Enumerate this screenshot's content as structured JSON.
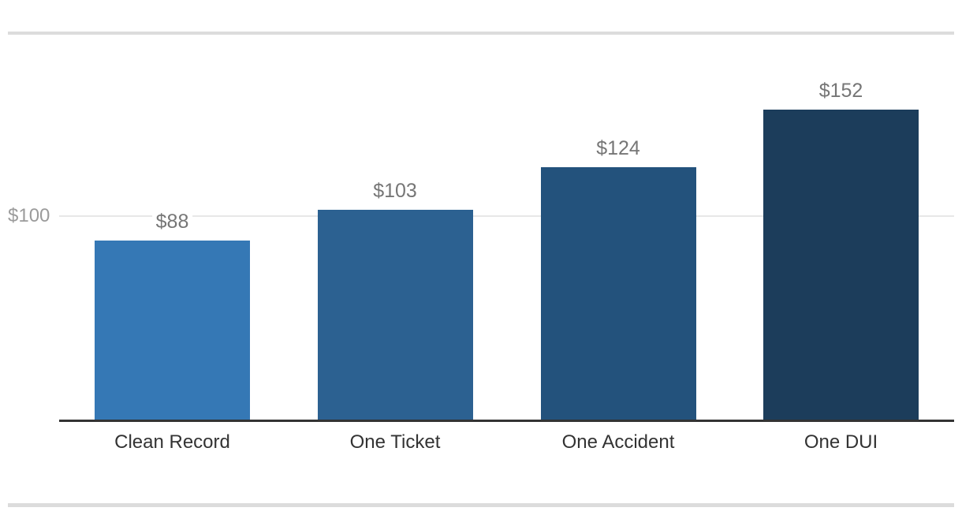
{
  "chart_data": {
    "type": "bar",
    "title": "",
    "xlabel": "",
    "ylabel": "",
    "categories": [
      "Clean Record",
      "One Ticket",
      "One Accident",
      "One DUI"
    ],
    "values": [
      88,
      103,
      124,
      152
    ],
    "value_labels": [
      "$88",
      "$103",
      "$124",
      "$152"
    ],
    "y_ticks": [
      {
        "value": 100,
        "label": "$100"
      }
    ],
    "ylim": [
      0,
      183
    ],
    "grid": "single horizontal gridline at $100",
    "legend": "none",
    "bar_colors": [
      "#3578B5",
      "#2C6191",
      "#23527C",
      "#1C3D5B"
    ]
  },
  "colors": {
    "background": "#ffffff",
    "separator": "#dcdcdc",
    "axis_line": "#333333",
    "gridline": "#e7e7e7",
    "y_tick_label": "#9b9b9b",
    "value_label": "#767676",
    "category_label": "#333333"
  }
}
